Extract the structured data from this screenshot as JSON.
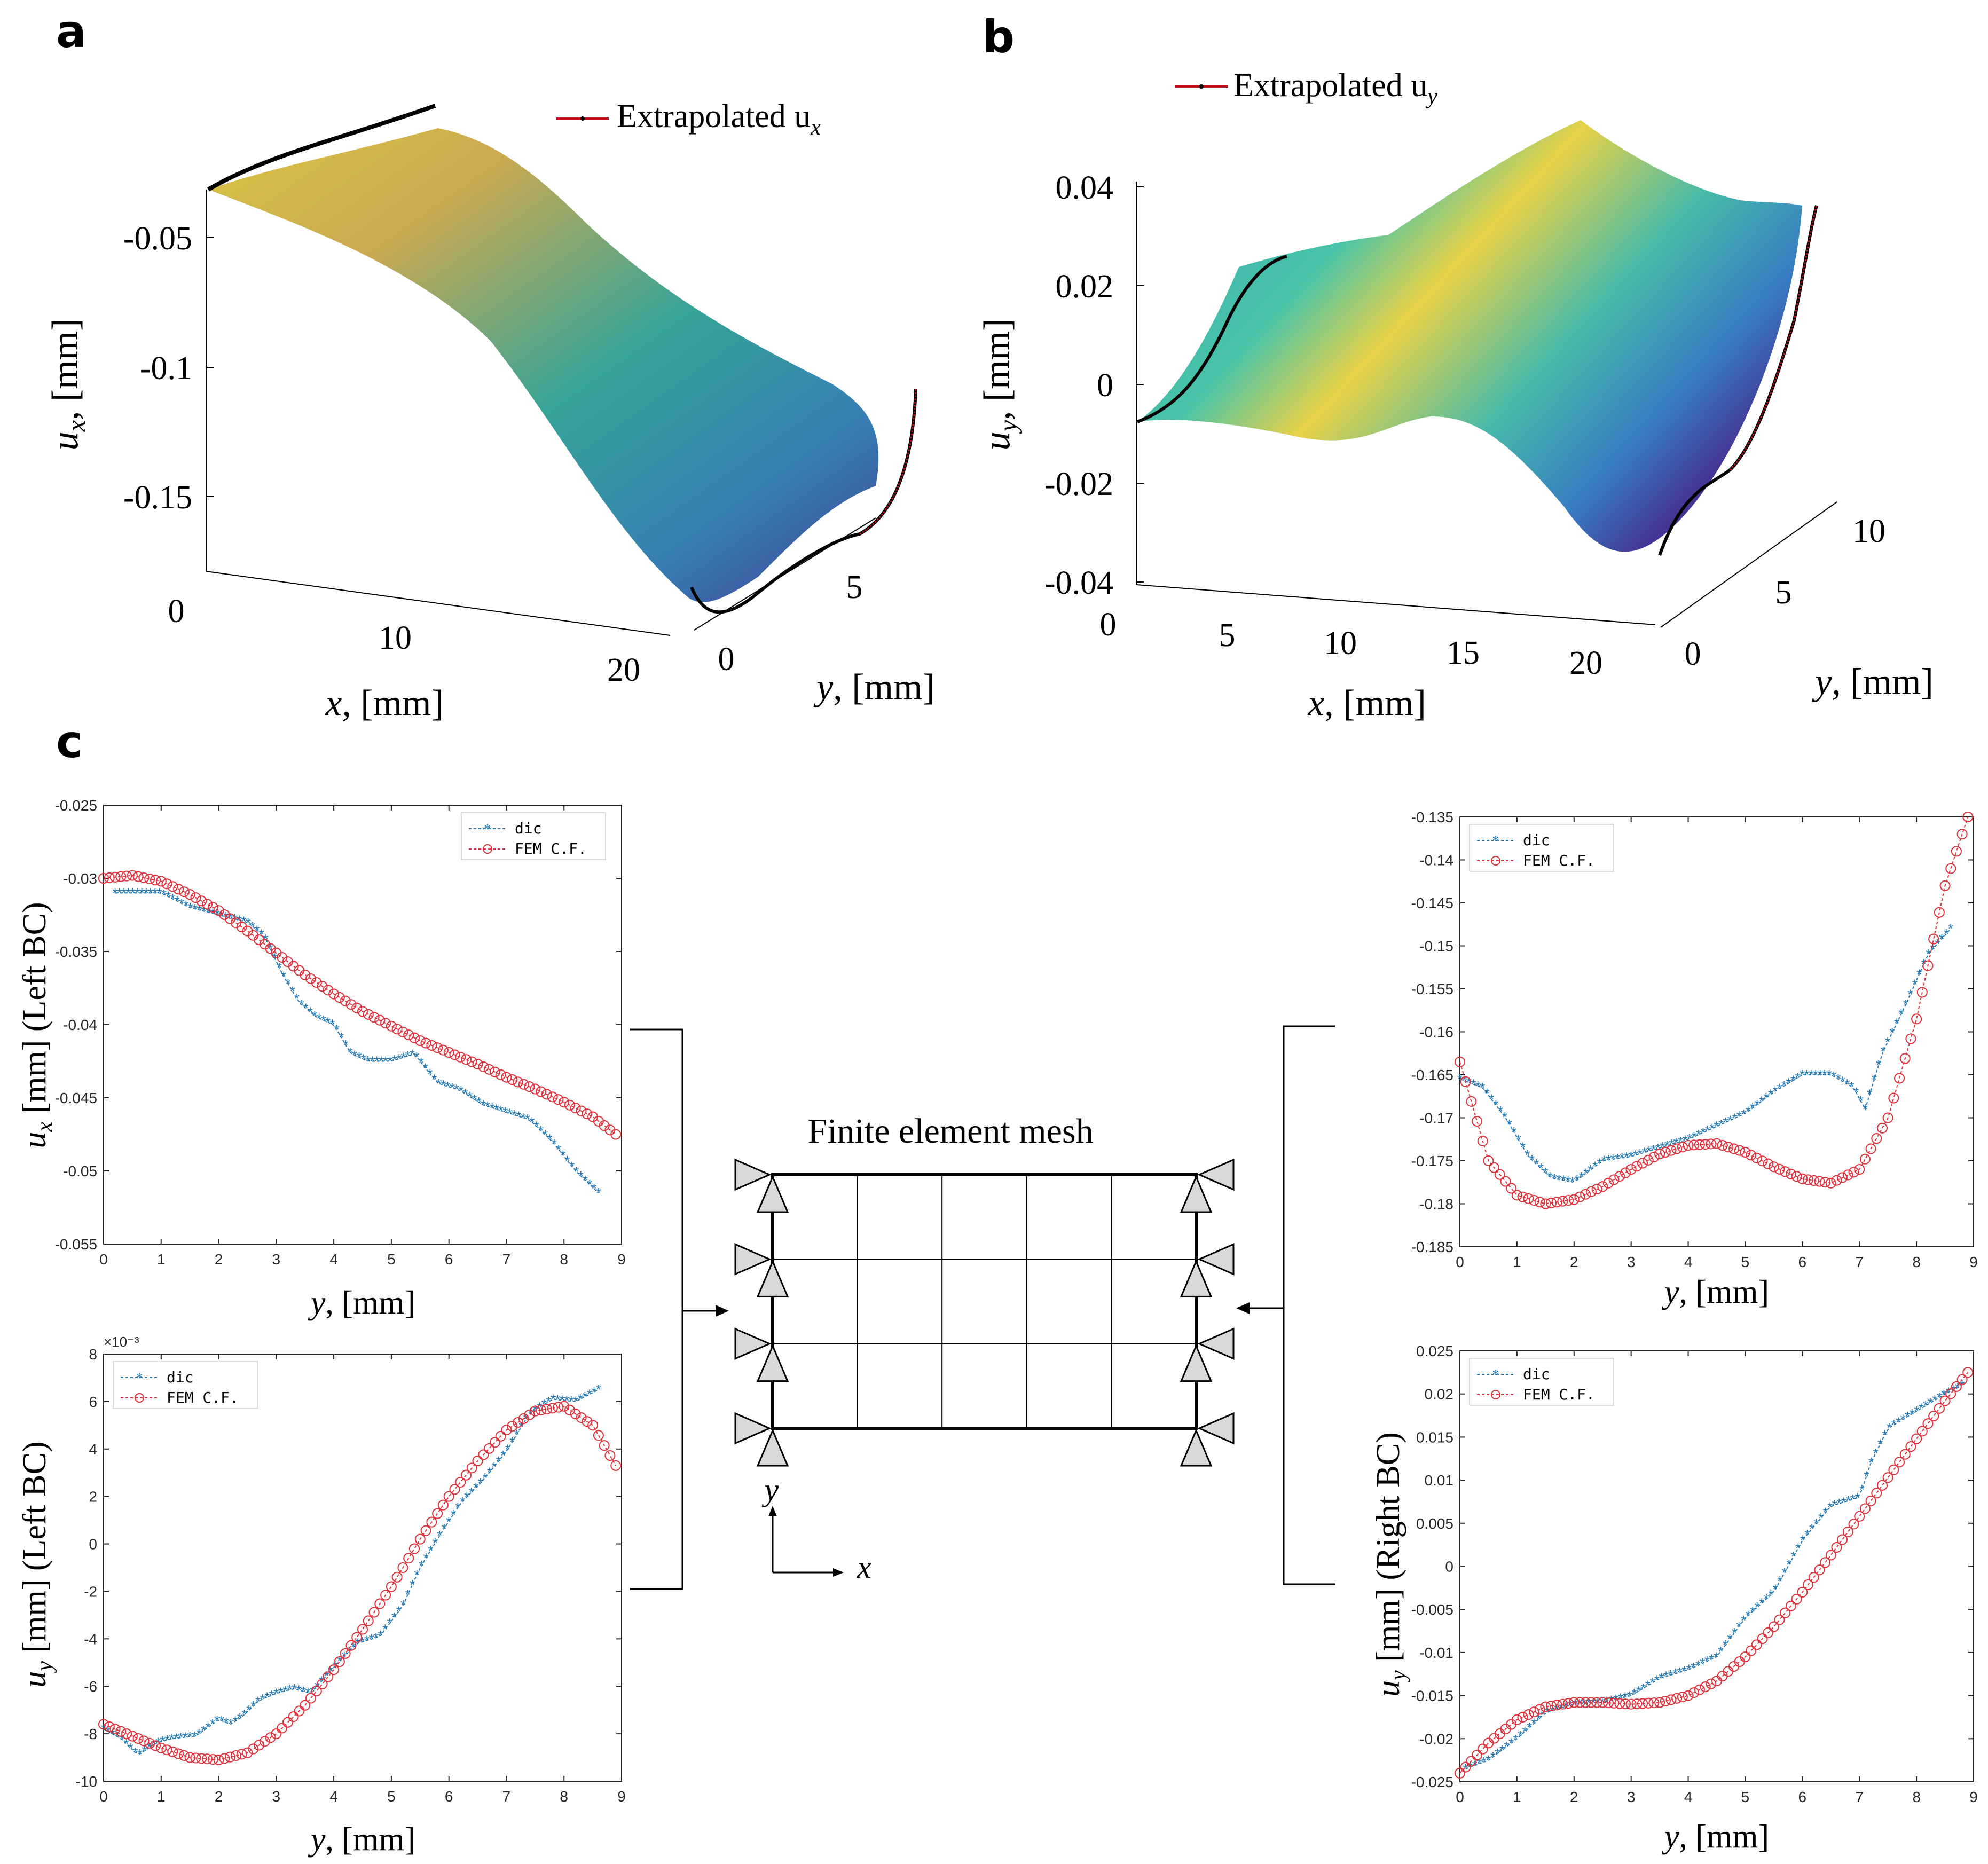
{
  "panels": {
    "a": {
      "letter": "a",
      "legend": "Extrapolated u",
      "legend_sub": "x",
      "zlabel_var": "u",
      "zlabel_sub": "x",
      "zlabel_unit": ", [mm]",
      "xlabel_var": "x",
      "xlabel_unit": ", [mm]",
      "ylabel_var": "y",
      "ylabel_unit": ", [mm]",
      "z_ticks": [
        "-0.05",
        "-0.1",
        "-0.15"
      ],
      "x_ticks": [
        "0",
        "10",
        "20"
      ],
      "y_ticks": [
        "0",
        "5"
      ]
    },
    "b": {
      "letter": "b",
      "legend": "Extrapolated u",
      "legend_sub": "y",
      "zlabel_var": "u",
      "zlabel_sub": "y",
      "zlabel_unit": ", [mm]",
      "xlabel_var": "x",
      "xlabel_unit": ", [mm]",
      "ylabel_var": "y",
      "ylabel_unit": ", [mm]",
      "z_ticks": [
        "0.04",
        "0.02",
        "0",
        "-0.02",
        "-0.04"
      ],
      "x_ticks": [
        "0",
        "5",
        "10",
        "15",
        "20"
      ],
      "y_ticks": [
        "0",
        "5",
        "10"
      ]
    },
    "c": {
      "letter": "c",
      "mesh_title": "Finite element mesh",
      "axis_y": "y",
      "axis_x": "x"
    }
  },
  "colors": {
    "dic": "#1f77b4",
    "fem": "#e0303a",
    "extrap": "#c0141e",
    "surface_high": "#f0d23c",
    "surface_mid": "#2aa6a0",
    "surface_low": "#3b2f8f"
  },
  "chart_data": [
    {
      "id": "left-ux",
      "type": "line",
      "title": "",
      "xlabel": "y, [mm]",
      "ylabel": "u_x [mm] (Left BC)",
      "xlim": [
        0,
        9
      ],
      "ylim": [
        -0.055,
        -0.025
      ],
      "x_ticks": [
        "0",
        "1",
        "2",
        "3",
        "4",
        "5",
        "6",
        "7",
        "8",
        "9"
      ],
      "y_ticks": [
        "-0.025",
        "-0.03",
        "-0.035",
        "-0.04",
        "-0.045",
        "-0.05",
        "-0.055"
      ],
      "y_tick_values": [
        -0.025,
        -0.03,
        -0.035,
        -0.04,
        -0.045,
        -0.05,
        -0.055
      ],
      "legend": [
        "dic",
        "FEM C.F."
      ],
      "legend_position": "top-right",
      "multiplier": "",
      "series": [
        {
          "name": "dic",
          "x": [
            0.2,
            0.6,
            1.0,
            1.5,
            2.0,
            2.5,
            2.8,
            3.1,
            3.4,
            3.7,
            4.0,
            4.3,
            4.6,
            5.0,
            5.4,
            5.8,
            6.2,
            6.6,
            7.0,
            7.4,
            7.8,
            8.2,
            8.6
          ],
          "y": [
            -0.031,
            -0.031,
            -0.031,
            -0.032,
            -0.0325,
            -0.033,
            -0.034,
            -0.0365,
            -0.0385,
            -0.0395,
            -0.04,
            -0.042,
            -0.0425,
            -0.0425,
            -0.042,
            -0.044,
            -0.0445,
            -0.0455,
            -0.046,
            -0.0465,
            -0.048,
            -0.05,
            -0.0515
          ]
        },
        {
          "name": "FEM C.F.",
          "x": [
            0,
            0.5,
            1,
            1.5,
            2,
            2.5,
            3,
            3.5,
            4,
            4.5,
            5,
            5.5,
            6,
            6.5,
            7,
            7.5,
            8,
            8.5,
            8.9
          ],
          "y": [
            -0.03,
            -0.0298,
            -0.0302,
            -0.0311,
            -0.0322,
            -0.0336,
            -0.0351,
            -0.0366,
            -0.0379,
            -0.0391,
            -0.0401,
            -0.0411,
            -0.0419,
            -0.0427,
            -0.0436,
            -0.0444,
            -0.0453,
            -0.0463,
            -0.0475
          ]
        }
      ]
    },
    {
      "id": "left-uy",
      "type": "line",
      "title": "",
      "xlabel": "y, [mm]",
      "ylabel": "u_y [mm] (Left BC)",
      "xlim": [
        0,
        9
      ],
      "ylim": [
        -10,
        8
      ],
      "x_ticks": [
        "0",
        "1",
        "2",
        "3",
        "4",
        "5",
        "6",
        "7",
        "8",
        "9"
      ],
      "y_ticks": [
        "8",
        "6",
        "4",
        "2",
        "0",
        "-2",
        "-4",
        "-6",
        "-8",
        "-10"
      ],
      "y_tick_values": [
        8,
        6,
        4,
        2,
        0,
        -2,
        -4,
        -6,
        -8,
        -10
      ],
      "legend": [
        "dic",
        "FEM C.F."
      ],
      "legend_position": "top-left",
      "multiplier": "×10⁻³",
      "series": [
        {
          "name": "dic",
          "x": [
            0,
            0.3,
            0.6,
            0.9,
            1.2,
            1.6,
            2.0,
            2.2,
            2.4,
            2.7,
            3.0,
            3.3,
            3.6,
            4.0,
            4.4,
            4.8,
            5.2,
            5.5,
            5.8,
            6.2,
            6.6,
            7.0,
            7.4,
            7.8,
            8.2,
            8.6
          ],
          "y": [
            -7.8,
            -8.2,
            -8.9,
            -8.4,
            -8.2,
            -8.1,
            -7.4,
            -7.6,
            -7.3,
            -6.6,
            -6.3,
            -6.1,
            -6.3,
            -5.2,
            -4.2,
            -3.9,
            -2.6,
            -1.0,
            0.2,
            1.7,
            2.7,
            3.9,
            5.5,
            6.1,
            6.0,
            6.5
          ]
        },
        {
          "name": "FEM C.F.",
          "x": [
            0,
            0.5,
            1,
            1.5,
            2,
            2.5,
            3,
            3.5,
            4,
            4.5,
            5,
            5.5,
            6,
            6.5,
            7,
            7.5,
            8,
            8.5,
            8.9
          ],
          "y": [
            -7.6,
            -8.1,
            -8.6,
            -9.0,
            -9.1,
            -8.8,
            -8.0,
            -6.8,
            -5.3,
            -3.6,
            -1.8,
            0.2,
            2.0,
            3.5,
            4.8,
            5.6,
            5.8,
            5.0,
            3.3
          ]
        }
      ]
    },
    {
      "id": "right-ux",
      "type": "line",
      "title": "",
      "xlabel": "y, [mm]",
      "ylabel": "",
      "xlim": [
        0,
        9
      ],
      "ylim": [
        -0.185,
        -0.135
      ],
      "x_ticks": [
        "0",
        "1",
        "2",
        "3",
        "4",
        "5",
        "6",
        "7",
        "8",
        "9"
      ],
      "y_ticks": [
        "-0.135",
        "-0.14",
        "-0.145",
        "-0.15",
        "-0.155",
        "-0.16",
        "-0.165",
        "-0.17",
        "-0.175",
        "-0.18",
        "-0.185"
      ],
      "y_tick_values": [
        -0.135,
        -0.14,
        -0.145,
        -0.15,
        -0.155,
        -0.16,
        -0.165,
        -0.17,
        -0.175,
        -0.18,
        -0.185
      ],
      "legend": [
        "dic",
        "FEM C.F."
      ],
      "legend_position": "top-left",
      "multiplier": "",
      "series": [
        {
          "name": "dic",
          "x": [
            0,
            0.4,
            0.8,
            1.2,
            1.6,
            2.0,
            2.5,
            3.0,
            3.5,
            4.0,
            4.5,
            5.0,
            5.5,
            6.0,
            6.5,
            6.9,
            7.1,
            7.4,
            7.8,
            8.2,
            8.6
          ],
          "y": [
            -0.1655,
            -0.1665,
            -0.17,
            -0.1745,
            -0.177,
            -0.1775,
            -0.175,
            -0.1745,
            -0.1735,
            -0.1725,
            -0.171,
            -0.1695,
            -0.167,
            -0.165,
            -0.165,
            -0.1665,
            -0.169,
            -0.1625,
            -0.157,
            -0.151,
            -0.148
          ]
        },
        {
          "name": "FEM C.F.",
          "x": [
            0,
            0.5,
            1,
            1.5,
            2,
            2.5,
            3,
            3.5,
            4,
            4.5,
            5,
            5.5,
            6,
            6.5,
            7,
            7.5,
            8,
            8.5,
            8.9
          ],
          "y": [
            -0.1635,
            -0.175,
            -0.179,
            -0.18,
            -0.1795,
            -0.178,
            -0.176,
            -0.1742,
            -0.1732,
            -0.173,
            -0.174,
            -0.1757,
            -0.1771,
            -0.1776,
            -0.176,
            -0.17,
            -0.1585,
            -0.143,
            -0.135
          ]
        }
      ]
    },
    {
      "id": "right-uy",
      "type": "line",
      "title": "",
      "xlabel": "y, [mm]",
      "ylabel": "u_y [mm] (Right BC)",
      "xlim": [
        0,
        9
      ],
      "ylim": [
        -0.025,
        0.025
      ],
      "x_ticks": [
        "0",
        "1",
        "2",
        "3",
        "4",
        "5",
        "6",
        "7",
        "8",
        "9"
      ],
      "y_ticks": [
        "0.025",
        "0.02",
        "0.015",
        "0.01",
        "0.005",
        "0",
        "-0.005",
        "-0.01",
        "-0.015",
        "-0.02",
        "-0.025"
      ],
      "y_tick_values": [
        0.025,
        0.02,
        0.015,
        0.01,
        0.005,
        0,
        -0.005,
        -0.01,
        -0.015,
        -0.02,
        -0.025
      ],
      "legend": [
        "dic",
        "FEM C.F."
      ],
      "legend_position": "top-left",
      "multiplier": "",
      "series": [
        {
          "name": "dic",
          "x": [
            0.1,
            0.5,
            1.0,
            1.5,
            2.0,
            2.5,
            3.0,
            3.5,
            4.0,
            4.5,
            5.0,
            5.5,
            6.0,
            6.5,
            7.0,
            7.2,
            7.5,
            8.0,
            8.5,
            8.8
          ],
          "y": [
            -0.0235,
            -0.0225,
            -0.02,
            -0.017,
            -0.016,
            -0.0158,
            -0.015,
            -0.013,
            -0.012,
            -0.0105,
            -0.006,
            -0.003,
            0.003,
            0.007,
            0.008,
            0.012,
            0.016,
            0.018,
            0.02,
            0.021
          ]
        },
        {
          "name": "FEM C.F.",
          "x": [
            0,
            0.5,
            1,
            1.5,
            2,
            2.5,
            3,
            3.5,
            4,
            4.5,
            5,
            5.5,
            6,
            6.5,
            7,
            7.5,
            8,
            8.5,
            8.9
          ],
          "y": [
            -0.024,
            -0.0205,
            -0.0178,
            -0.0163,
            -0.0158,
            -0.0158,
            -0.016,
            -0.0158,
            -0.015,
            -0.0133,
            -0.0105,
            -0.007,
            -0.003,
            0.0013,
            0.0058,
            0.0103,
            0.0148,
            0.0192,
            0.0225
          ]
        }
      ]
    }
  ]
}
